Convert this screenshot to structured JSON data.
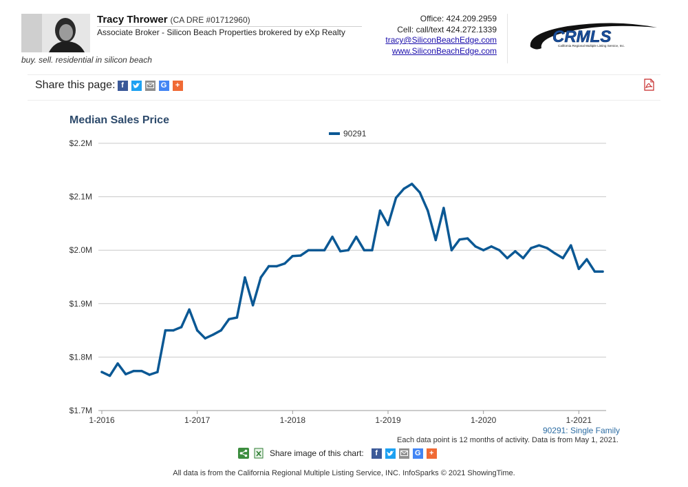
{
  "header": {
    "agent_name": "Tracy Thrower",
    "license": "(CA DRE #01712960)",
    "title": "Associate Broker - Silicon Beach Properties brokered by eXp Realty",
    "tagline": "buy. sell. residential in silicon beach",
    "office": "Office: 424.209.2959",
    "cell": "Cell: call/text 424.272.1339",
    "email": "tracy@SiliconBeachEdge.com",
    "website": "www.SiliconBeachEdge.com",
    "logo_text": "CRMLS",
    "logo_subtext": "California Regional Multiple Listing Service, Inc."
  },
  "share_page": {
    "label": "Share this page:",
    "icons": [
      "facebook-icon",
      "twitter-icon",
      "email-icon",
      "google-icon",
      "plus-icon"
    ]
  },
  "chart_data": {
    "type": "line",
    "title": "Median Sales Price",
    "xlabel": "",
    "ylabel": "",
    "ylim": [
      1700000,
      2200000
    ],
    "y_ticks": [
      "$1.7M",
      "$1.8M",
      "$1.9M",
      "$2.0M",
      "$2.1M",
      "$2.2M"
    ],
    "x_ticks": [
      "1-2016",
      "1-2017",
      "1-2018",
      "1-2019",
      "1-2020",
      "1-2021"
    ],
    "grid": true,
    "legend_position": "top-center",
    "series": [
      {
        "name": "90291",
        "color": "#0b5894",
        "x": [
          "2016-01",
          "2016-02",
          "2016-03",
          "2016-04",
          "2016-05",
          "2016-06",
          "2016-07",
          "2016-08",
          "2016-09",
          "2016-10",
          "2016-11",
          "2016-12",
          "2017-01",
          "2017-02",
          "2017-03",
          "2017-04",
          "2017-05",
          "2017-06",
          "2017-07",
          "2017-08",
          "2017-09",
          "2017-10",
          "2017-11",
          "2017-12",
          "2018-01",
          "2018-02",
          "2018-03",
          "2018-04",
          "2018-05",
          "2018-06",
          "2018-07",
          "2018-08",
          "2018-09",
          "2018-10",
          "2018-11",
          "2018-12",
          "2019-01",
          "2019-02",
          "2019-03",
          "2019-04",
          "2019-05",
          "2019-06",
          "2019-07",
          "2019-08",
          "2019-09",
          "2019-10",
          "2019-11",
          "2019-12",
          "2020-01",
          "2020-02",
          "2020-03",
          "2020-04",
          "2020-05",
          "2020-06",
          "2020-07",
          "2020-08",
          "2020-09",
          "2020-10",
          "2020-11",
          "2020-12",
          "2021-01",
          "2021-02",
          "2021-03",
          "2021-04"
        ],
        "values": [
          1772000,
          1765000,
          1788000,
          1768000,
          1774000,
          1774000,
          1767000,
          1772000,
          1850000,
          1850000,
          1856000,
          1889000,
          1850000,
          1835000,
          1842000,
          1850000,
          1871000,
          1874000,
          1949000,
          1897000,
          1949000,
          1970000,
          1970000,
          1975000,
          1989000,
          1990000,
          2000000,
          2000000,
          2000000,
          2025000,
          1998000,
          2000000,
          2025000,
          2000000,
          2000000,
          2074000,
          2047000,
          2098000,
          2115000,
          2124000,
          2108000,
          2074000,
          2019000,
          2079000,
          2000000,
          2020000,
          2022000,
          2007000,
          2000000,
          2007000,
          2000000,
          1985000,
          1998000,
          1985000,
          2004000,
          2009000,
          2004000,
          1994000,
          1985000,
          2009000,
          1965000,
          1983000,
          1960000,
          1960000
        ]
      }
    ],
    "series_note": "90291: Single Family",
    "footnote": "Each data point is 12 months of activity. Data is from May 1, 2021."
  },
  "chart_share": {
    "label": "Share image of this chart:"
  },
  "footer": {
    "note": "All data is from the California Regional Multiple Listing Service, INC. InfoSparks © 2021 ShowingTime."
  }
}
